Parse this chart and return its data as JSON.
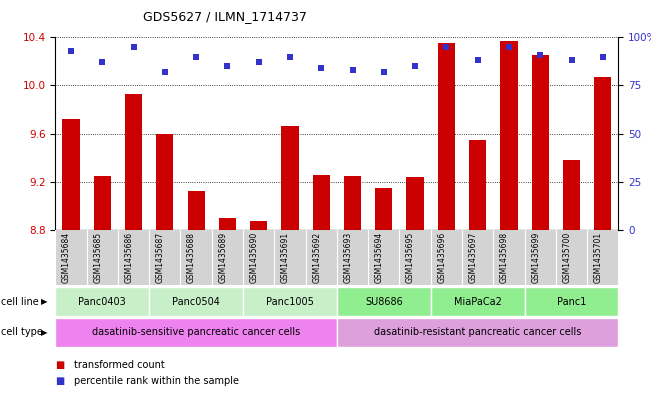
{
  "title": "GDS5627 / ILMN_1714737",
  "samples": [
    "GSM1435684",
    "GSM1435685",
    "GSM1435686",
    "GSM1435687",
    "GSM1435688",
    "GSM1435689",
    "GSM1435690",
    "GSM1435691",
    "GSM1435692",
    "GSM1435693",
    "GSM1435694",
    "GSM1435695",
    "GSM1435696",
    "GSM1435697",
    "GSM1435698",
    "GSM1435699",
    "GSM1435700",
    "GSM1435701"
  ],
  "bar_values": [
    9.72,
    9.25,
    9.93,
    9.6,
    9.12,
    8.9,
    8.87,
    9.66,
    9.26,
    9.25,
    9.15,
    9.24,
    10.35,
    9.55,
    10.37,
    10.25,
    9.38,
    10.07
  ],
  "percentile_values": [
    93,
    87,
    95,
    82,
    90,
    85,
    87,
    90,
    84,
    83,
    82,
    85,
    95,
    88,
    95,
    91,
    88,
    90
  ],
  "cell_lines": [
    {
      "name": "Panc0403",
      "start": 0,
      "end": 3,
      "color": "#c8f0c8"
    },
    {
      "name": "Panc0504",
      "start": 3,
      "end": 6,
      "color": "#c8f0c8"
    },
    {
      "name": "Panc1005",
      "start": 6,
      "end": 9,
      "color": "#c8f0c8"
    },
    {
      "name": "SU8686",
      "start": 9,
      "end": 12,
      "color": "#90ee90"
    },
    {
      "name": "MiaPaCa2",
      "start": 12,
      "end": 15,
      "color": "#90ee90"
    },
    {
      "name": "Panc1",
      "start": 15,
      "end": 18,
      "color": "#90ee90"
    }
  ],
  "cell_types": [
    {
      "name": "dasatinib-sensitive pancreatic cancer cells",
      "start": 0,
      "end": 9,
      "color": "#ee82ee"
    },
    {
      "name": "dasatinib-resistant pancreatic cancer cells",
      "start": 9,
      "end": 18,
      "color": "#dda0dd"
    }
  ],
  "ylim_left": [
    8.8,
    10.4
  ],
  "ylim_right": [
    0,
    100
  ],
  "yticks_left": [
    8.8,
    9.2,
    9.6,
    10.0,
    10.4
  ],
  "yticks_right": [
    0,
    25,
    50,
    75,
    100
  ],
  "bar_color": "#cc0000",
  "dot_color": "#3333cc",
  "legend_bar_label": "transformed count",
  "legend_dot_label": "percentile rank within the sample",
  "cell_line_label": "cell line",
  "cell_type_label": "cell type",
  "bg_color": "#d3d3d3"
}
